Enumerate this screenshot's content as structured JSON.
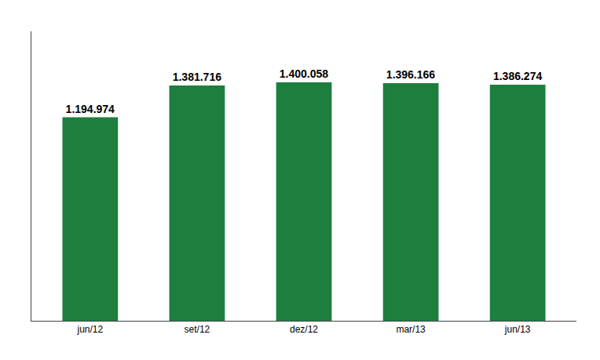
{
  "chart_data": {
    "type": "bar",
    "categories": [
      "jun/12",
      "set/12",
      "dez/12",
      "mar/13",
      "jun/13"
    ],
    "values": [
      1194974,
      1381716,
      1400058,
      1396166,
      1386274
    ],
    "value_labels": [
      "1.194.974",
      "1.381.716",
      "1.400.058",
      "1.396.166",
      "1.386.274"
    ],
    "color": "#1e7e3e",
    "ylim": [
      0,
      1700000
    ],
    "data_labels": true,
    "tick_labels": "x",
    "grid": false
  }
}
